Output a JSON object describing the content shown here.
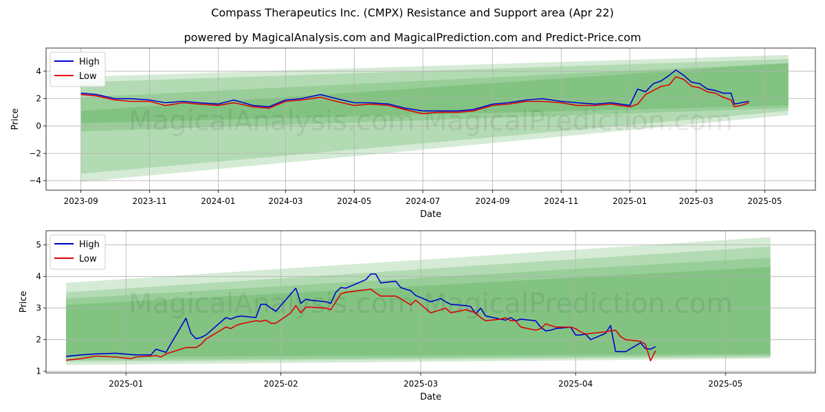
{
  "title": "Compass Therapeutics Inc. (CMPX) Resistance and Support area (Apr 22)",
  "subtitle": "powered by MagicalAnalysis.com and MagicalPrediction.com and Predict-Price.com",
  "watermark": "MagicalAnalysis.com   MagicalPrediction.com",
  "colors": {
    "high": "#0000cc",
    "low": "#dd0000",
    "band": "#2e9b2e",
    "grid": "#b0b0b0"
  },
  "chart_data": [
    {
      "type": "line",
      "xlabel": "Date",
      "ylabel": "Price",
      "x_ticks": [
        "2023-09",
        "2023-11",
        "2024-01",
        "2024-03",
        "2024-05",
        "2024-07",
        "2024-09",
        "2024-11",
        "2025-01",
        "2025-03",
        "2025-05"
      ],
      "y_ticks": [
        4,
        2,
        0,
        -2,
        -4
      ],
      "xlim": [
        "2023-08-01",
        "2025-06-15"
      ],
      "ylim": [
        -4.7,
        5.7
      ],
      "grid": true,
      "legend": "top-left",
      "bands_start": "2023-09-01",
      "bands_end": "2025-05-22",
      "bands": [
        {
          "start": [
            -4.1,
            3.6
          ],
          "end": [
            0.8,
            5.2
          ]
        },
        {
          "start": [
            -3.5,
            3.2
          ],
          "end": [
            1.1,
            4.9
          ]
        },
        {
          "start": [
            -0.4,
            2.1
          ],
          "end": [
            1.3,
            4.6
          ]
        },
        {
          "start": [
            0.2,
            1.1
          ],
          "end": [
            1.5,
            4.6
          ]
        }
      ],
      "series": [
        {
          "name": "High",
          "x": [
            "2023-09-01",
            "2023-09-15",
            "2023-10-01",
            "2023-10-15",
            "2023-11-01",
            "2023-11-15",
            "2023-12-01",
            "2023-12-15",
            "2024-01-01",
            "2024-01-15",
            "2024-02-01",
            "2024-02-15",
            "2024-03-01",
            "2024-03-15",
            "2024-04-01",
            "2024-04-15",
            "2024-05-01",
            "2024-05-15",
            "2024-06-01",
            "2024-06-15",
            "2024-07-01",
            "2024-07-15",
            "2024-08-01",
            "2024-08-15",
            "2024-09-01",
            "2024-09-15",
            "2024-10-01",
            "2024-10-15",
            "2024-11-01",
            "2024-11-15",
            "2024-12-01",
            "2024-12-15",
            "2025-01-01",
            "2025-01-08",
            "2025-01-15",
            "2025-01-22",
            "2025-01-29",
            "2025-02-05",
            "2025-02-11",
            "2025-02-18",
            "2025-02-25",
            "2025-03-04",
            "2025-03-11",
            "2025-03-18",
            "2025-03-25",
            "2025-04-01",
            "2025-04-04",
            "2025-04-10",
            "2025-04-17"
          ],
          "values": [
            2.4,
            2.3,
            2.0,
            2.0,
            1.9,
            1.7,
            1.8,
            1.7,
            1.6,
            1.9,
            1.5,
            1.4,
            1.9,
            2.0,
            2.3,
            2.0,
            1.7,
            1.7,
            1.6,
            1.3,
            1.1,
            1.1,
            1.1,
            1.2,
            1.6,
            1.7,
            1.9,
            2.0,
            1.8,
            1.7,
            1.6,
            1.7,
            1.5,
            2.7,
            2.5,
            3.1,
            3.3,
            3.7,
            4.1,
            3.7,
            3.2,
            3.1,
            2.7,
            2.6,
            2.4,
            2.4,
            1.6,
            1.7,
            1.8
          ]
        },
        {
          "name": "Low",
          "x": [
            "2023-09-01",
            "2023-09-15",
            "2023-10-01",
            "2023-10-15",
            "2023-11-01",
            "2023-11-15",
            "2023-12-01",
            "2023-12-15",
            "2024-01-01",
            "2024-01-15",
            "2024-02-01",
            "2024-02-15",
            "2024-03-01",
            "2024-03-15",
            "2024-04-01",
            "2024-04-15",
            "2024-05-01",
            "2024-05-15",
            "2024-06-01",
            "2024-06-15",
            "2024-07-01",
            "2024-07-15",
            "2024-08-01",
            "2024-08-15",
            "2024-09-01",
            "2024-09-15",
            "2024-10-01",
            "2024-10-15",
            "2024-11-01",
            "2024-11-15",
            "2024-12-01",
            "2024-12-15",
            "2025-01-01",
            "2025-01-08",
            "2025-01-15",
            "2025-01-22",
            "2025-01-29",
            "2025-02-05",
            "2025-02-11",
            "2025-02-18",
            "2025-02-25",
            "2025-03-04",
            "2025-03-11",
            "2025-03-18",
            "2025-03-25",
            "2025-04-01",
            "2025-04-04",
            "2025-04-10",
            "2025-04-17"
          ],
          "values": [
            2.3,
            2.2,
            1.9,
            1.8,
            1.8,
            1.5,
            1.7,
            1.6,
            1.5,
            1.7,
            1.4,
            1.3,
            1.8,
            1.9,
            2.1,
            1.8,
            1.5,
            1.6,
            1.5,
            1.2,
            0.9,
            1.0,
            1.0,
            1.1,
            1.5,
            1.6,
            1.8,
            1.8,
            1.7,
            1.5,
            1.5,
            1.6,
            1.4,
            1.6,
            2.3,
            2.6,
            2.9,
            3.0,
            3.6,
            3.4,
            2.9,
            2.8,
            2.5,
            2.4,
            2.1,
            1.9,
            1.4,
            1.5,
            1.7
          ]
        }
      ]
    },
    {
      "type": "line",
      "xlabel": "Date",
      "ylabel": "Price",
      "x_ticks": [
        "2025-01",
        "2025-02",
        "2025-03",
        "2025-04",
        "2025-05"
      ],
      "y_ticks": [
        5,
        4,
        3,
        2,
        1
      ],
      "xlim": [
        "2024-12-16",
        "2025-05-19"
      ],
      "ylim": [
        0.95,
        5.45
      ],
      "grid": true,
      "legend": "top-left",
      "bands_start": "2024-12-20",
      "bands_end": "2025-05-10",
      "bands": [
        {
          "start": [
            1.2,
            3.8
          ],
          "end": [
            1.4,
            5.25
          ]
        },
        {
          "start": [
            1.3,
            3.5
          ],
          "end": [
            1.45,
            4.95
          ]
        },
        {
          "start": [
            1.35,
            3.3
          ],
          "end": [
            1.5,
            4.6
          ]
        },
        {
          "start": [
            1.45,
            3.1
          ],
          "end": [
            1.55,
            4.3
          ]
        }
      ],
      "series": [
        {
          "name": "High",
          "x": [
            "2024-12-20",
            "2024-12-23",
            "2024-12-26",
            "2024-12-30",
            "2025-01-02",
            "2025-01-03",
            "2025-01-06",
            "2025-01-07",
            "2025-01-08",
            "2025-01-09",
            "2025-01-13",
            "2025-01-14",
            "2025-01-15",
            "2025-01-16",
            "2025-01-17",
            "2025-01-21",
            "2025-01-22",
            "2025-01-23",
            "2025-01-24",
            "2025-01-27",
            "2025-01-28",
            "2025-01-29",
            "2025-01-30",
            "2025-01-31",
            "2025-02-03",
            "2025-02-04",
            "2025-02-05",
            "2025-02-06",
            "2025-02-07",
            "2025-02-10",
            "2025-02-11",
            "2025-02-12",
            "2025-02-13",
            "2025-02-14",
            "2025-02-18",
            "2025-02-19",
            "2025-02-20",
            "2025-02-21",
            "2025-02-24",
            "2025-02-25",
            "2025-02-26",
            "2025-02-27",
            "2025-02-28",
            "2025-03-03",
            "2025-03-04",
            "2025-03-05",
            "2025-03-06",
            "2025-03-07",
            "2025-03-10",
            "2025-03-11",
            "2025-03-12",
            "2025-03-13",
            "2025-03-14",
            "2025-03-17",
            "2025-03-18",
            "2025-03-19",
            "2025-03-20",
            "2025-03-21",
            "2025-03-24",
            "2025-03-25",
            "2025-03-26",
            "2025-03-27",
            "2025-03-28",
            "2025-03-31",
            "2025-04-01",
            "2025-04-02",
            "2025-04-03",
            "2025-04-04",
            "2025-04-07",
            "2025-04-08",
            "2025-04-09",
            "2025-04-10",
            "2025-04-11",
            "2025-04-14",
            "2025-04-15",
            "2025-04-16",
            "2025-04-17"
          ],
          "values": [
            1.47,
            1.52,
            1.55,
            1.57,
            1.53,
            1.52,
            1.52,
            1.7,
            1.65,
            1.6,
            2.68,
            2.2,
            2.03,
            2.07,
            2.15,
            2.7,
            2.65,
            2.72,
            2.75,
            2.7,
            3.12,
            3.12,
            3.0,
            2.9,
            3.45,
            3.63,
            3.15,
            3.28,
            3.25,
            3.2,
            3.15,
            3.5,
            3.65,
            3.63,
            3.9,
            4.08,
            4.08,
            3.8,
            3.85,
            3.65,
            3.6,
            3.55,
            3.4,
            3.2,
            3.25,
            3.3,
            3.2,
            3.12,
            3.08,
            3.05,
            2.82,
            3.0,
            2.75,
            2.65,
            2.62,
            2.7,
            2.6,
            2.65,
            2.6,
            2.4,
            2.28,
            2.3,
            2.35,
            2.4,
            2.15,
            2.15,
            2.18,
            2.0,
            2.2,
            2.45,
            1.63,
            1.62,
            1.62,
            1.9,
            1.72,
            1.7,
            1.78
          ]
        },
        {
          "name": "Low",
          "x": [
            "2024-12-20",
            "2024-12-23",
            "2024-12-26",
            "2024-12-30",
            "2025-01-02",
            "2025-01-03",
            "2025-01-06",
            "2025-01-07",
            "2025-01-08",
            "2025-01-09",
            "2025-01-13",
            "2025-01-14",
            "2025-01-15",
            "2025-01-16",
            "2025-01-17",
            "2025-01-21",
            "2025-01-22",
            "2025-01-23",
            "2025-01-24",
            "2025-01-27",
            "2025-01-28",
            "2025-01-29",
            "2025-01-30",
            "2025-01-31",
            "2025-02-03",
            "2025-02-04",
            "2025-02-05",
            "2025-02-06",
            "2025-02-07",
            "2025-02-10",
            "2025-02-11",
            "2025-02-12",
            "2025-02-13",
            "2025-02-14",
            "2025-02-18",
            "2025-02-19",
            "2025-02-20",
            "2025-02-21",
            "2025-02-24",
            "2025-02-25",
            "2025-02-26",
            "2025-02-27",
            "2025-02-28",
            "2025-03-03",
            "2025-03-04",
            "2025-03-05",
            "2025-03-06",
            "2025-03-07",
            "2025-03-10",
            "2025-03-11",
            "2025-03-12",
            "2025-03-13",
            "2025-03-14",
            "2025-03-17",
            "2025-03-18",
            "2025-03-19",
            "2025-03-20",
            "2025-03-21",
            "2025-03-24",
            "2025-03-25",
            "2025-03-26",
            "2025-03-27",
            "2025-03-28",
            "2025-03-31",
            "2025-04-01",
            "2025-04-02",
            "2025-04-03",
            "2025-04-04",
            "2025-04-07",
            "2025-04-08",
            "2025-04-09",
            "2025-04-10",
            "2025-04-11",
            "2025-04-14",
            "2025-04-15",
            "2025-04-16",
            "2025-04-17"
          ],
          "values": [
            1.35,
            1.4,
            1.48,
            1.45,
            1.4,
            1.45,
            1.48,
            1.5,
            1.45,
            1.55,
            1.75,
            1.75,
            1.75,
            1.85,
            2.02,
            2.4,
            2.35,
            2.45,
            2.5,
            2.6,
            2.58,
            2.62,
            2.52,
            2.52,
            2.85,
            3.08,
            2.85,
            3.03,
            3.03,
            3.0,
            2.95,
            3.2,
            3.45,
            3.5,
            3.58,
            3.6,
            3.48,
            3.38,
            3.38,
            3.3,
            3.2,
            3.1,
            3.25,
            2.85,
            2.9,
            2.95,
            3.0,
            2.85,
            2.95,
            2.9,
            2.85,
            2.7,
            2.6,
            2.65,
            2.7,
            2.6,
            2.6,
            2.4,
            2.3,
            2.35,
            2.5,
            2.45,
            2.4,
            2.4,
            2.35,
            2.25,
            2.18,
            2.2,
            2.25,
            2.28,
            2.3,
            2.1,
            2.0,
            1.95,
            1.85,
            1.33,
            1.65
          ]
        }
      ]
    }
  ]
}
